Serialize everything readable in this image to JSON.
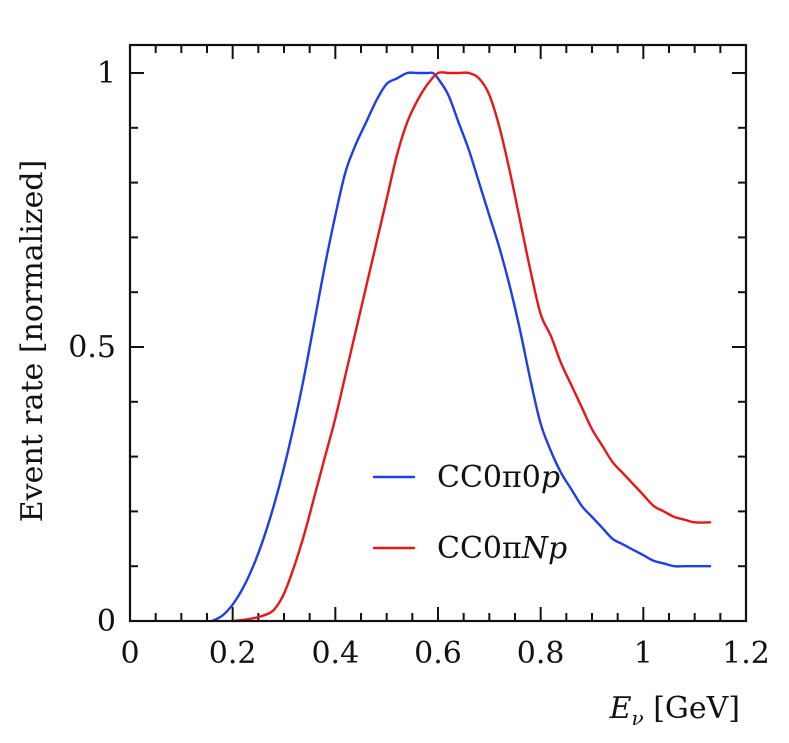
{
  "chart_data": {
    "type": "line",
    "title": "",
    "xlabel_main": "E",
    "xlabel_sub": "ν",
    "xlabel_unit": " [GeV]",
    "ylabel": "Event rate [normalized]",
    "xlim": [
      0,
      1.2
    ],
    "ylim": [
      0,
      1.0
    ],
    "x_major_ticks": [
      0,
      0.2,
      0.4,
      0.6,
      0.8,
      1.0,
      1.2
    ],
    "x_tick_labels": [
      "0",
      "0.2",
      "0.4",
      "0.6",
      "0.8",
      "1",
      "1.2"
    ],
    "y_major_ticks": [
      0,
      0.5,
      1.0
    ],
    "y_tick_labels": [
      "0",
      "0.5",
      "1"
    ],
    "grid": false,
    "legend_position": "bottom-right",
    "series": [
      {
        "name": "CC0π0p",
        "legend_main": "CC0π0",
        "legend_italic": "p",
        "color": "#1f3de8",
        "x": [
          0.16,
          0.18,
          0.2,
          0.22,
          0.24,
          0.26,
          0.28,
          0.3,
          0.32,
          0.34,
          0.36,
          0.38,
          0.4,
          0.42,
          0.44,
          0.46,
          0.48,
          0.5,
          0.52,
          0.54,
          0.56,
          0.58,
          0.59,
          0.6,
          0.62,
          0.64,
          0.66,
          0.68,
          0.7,
          0.72,
          0.74,
          0.76,
          0.78,
          0.8,
          0.82,
          0.84,
          0.86,
          0.88,
          0.9,
          0.92,
          0.94,
          0.96,
          0.98,
          1.0,
          1.02,
          1.04,
          1.06,
          1.08,
          1.1,
          1.13
        ],
        "y": [
          0.0,
          0.01,
          0.03,
          0.06,
          0.1,
          0.15,
          0.21,
          0.28,
          0.36,
          0.45,
          0.55,
          0.65,
          0.74,
          0.82,
          0.87,
          0.91,
          0.95,
          0.98,
          0.99,
          1.0,
          1.0,
          1.0,
          1.0,
          0.99,
          0.96,
          0.91,
          0.86,
          0.8,
          0.74,
          0.68,
          0.61,
          0.53,
          0.44,
          0.36,
          0.31,
          0.27,
          0.24,
          0.21,
          0.19,
          0.17,
          0.15,
          0.14,
          0.13,
          0.12,
          0.11,
          0.105,
          0.1,
          0.1,
          0.1,
          0.1
        ]
      },
      {
        "name": "CC0πNp",
        "legend_main": "CC0π",
        "legend_italic": "Np",
        "color": "#e8151a",
        "x": [
          0.2,
          0.22,
          0.24,
          0.26,
          0.28,
          0.3,
          0.32,
          0.34,
          0.36,
          0.38,
          0.4,
          0.42,
          0.44,
          0.46,
          0.48,
          0.5,
          0.52,
          0.54,
          0.56,
          0.58,
          0.6,
          0.62,
          0.64,
          0.66,
          0.68,
          0.7,
          0.72,
          0.74,
          0.76,
          0.78,
          0.8,
          0.82,
          0.84,
          0.86,
          0.88,
          0.9,
          0.92,
          0.94,
          0.96,
          0.98,
          1.0,
          1.02,
          1.04,
          1.06,
          1.08,
          1.1,
          1.13
        ],
        "y": [
          0.0,
          0.002,
          0.005,
          0.01,
          0.02,
          0.05,
          0.1,
          0.16,
          0.23,
          0.3,
          0.37,
          0.45,
          0.53,
          0.61,
          0.69,
          0.77,
          0.85,
          0.91,
          0.95,
          0.98,
          1.0,
          1.0,
          1.0,
          1.0,
          0.99,
          0.96,
          0.9,
          0.82,
          0.73,
          0.64,
          0.56,
          0.52,
          0.47,
          0.43,
          0.39,
          0.35,
          0.32,
          0.29,
          0.27,
          0.25,
          0.23,
          0.21,
          0.2,
          0.19,
          0.185,
          0.18,
          0.18
        ]
      }
    ]
  }
}
